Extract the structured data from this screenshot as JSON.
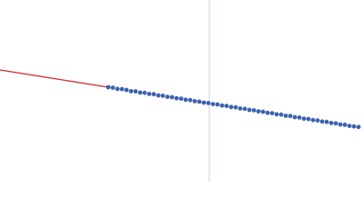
{
  "chart_data": {
    "type": "scatter",
    "x": [
      119,
      124,
      129,
      134,
      139,
      144,
      149,
      154,
      159,
      164,
      169,
      174,
      179,
      184,
      189,
      194,
      199,
      204,
      209,
      214,
      219,
      224,
      229,
      234,
      239,
      244,
      249,
      254,
      259,
      264,
      269,
      274,
      279,
      284,
      289,
      294,
      299,
      304,
      309,
      314,
      319,
      324,
      329,
      334,
      339,
      344,
      349,
      354,
      359,
      364,
      369,
      374,
      379,
      384,
      389,
      394
    ],
    "series": [
      {
        "color": "#3d63b0",
        "values": [
          104.0,
          103.5,
          102.1,
          101.9,
          101.0,
          99.6,
          99.5,
          98.1,
          97.8,
          96.6,
          96.3,
          95.0,
          94.6,
          93.4,
          93.0,
          91.8,
          91.4,
          90.2,
          89.8,
          88.6,
          88.1,
          87.0,
          86.6,
          85.4,
          85.0,
          83.8,
          83.4,
          82.2,
          81.8,
          80.6,
          80.2,
          79.0,
          78.6,
          77.4,
          77.0,
          75.8,
          75.4,
          74.2,
          73.8,
          72.6,
          72.3,
          71.0,
          70.6,
          69.4,
          69.0,
          67.8,
          67.4,
          66.2,
          65.8,
          64.6,
          64.2,
          63.0,
          62.6,
          61.4,
          60.8,
          60.2
        ]
      }
    ],
    "fit": {
      "color": "#d62728",
      "x": [
        0,
        119
      ],
      "values": [
        123,
        104
      ]
    },
    "vline": {
      "color": "#c9d2ea",
      "value": 230
    },
    "xlim": [
      0,
      400
    ],
    "ylim": [
      0,
      200
    ]
  }
}
